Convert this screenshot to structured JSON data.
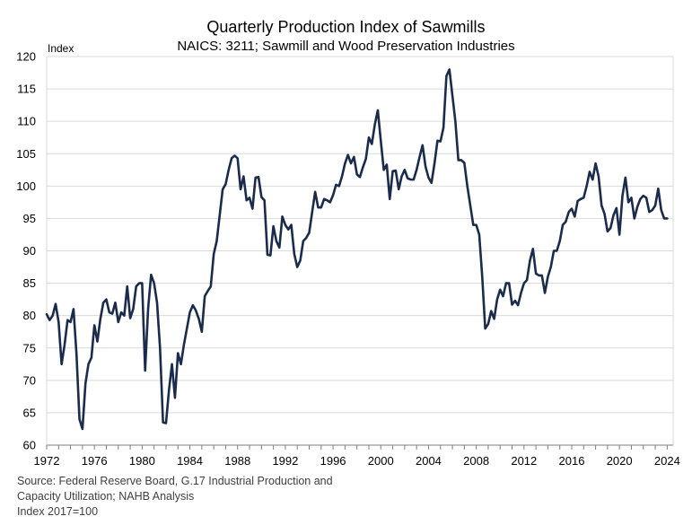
{
  "chart_data": {
    "type": "line",
    "title": "Quarterly Production Index of Sawmills",
    "subtitle": "NAICS: 3211; Sawmill and Wood Preservation Industries",
    "ylabel": "Index",
    "xlabel": "",
    "ylim": [
      60,
      120
    ],
    "xlim": [
      1972,
      2024.5
    ],
    "yticks": [
      60,
      65,
      70,
      75,
      80,
      85,
      90,
      95,
      100,
      105,
      110,
      115,
      120
    ],
    "xticks": [
      "1972",
      "1976",
      "1980",
      "1984",
      "1988",
      "1992",
      "1996",
      "2000",
      "2004",
      "2008",
      "2012",
      "2016",
      "2020",
      "2024"
    ],
    "grid": true,
    "line_color": "#1b2b4b",
    "series": [
      {
        "start": 1972.0,
        "step": 0.25,
        "values": [
          80.2,
          79.3,
          80.0,
          81.8,
          79.0,
          72.5,
          75.5,
          79.3,
          79.0,
          81.0,
          74.0,
          64.0,
          62.5,
          69.5,
          72.5,
          73.5,
          78.5,
          76.0,
          79.5,
          82.0,
          82.5,
          80.5,
          80.3,
          82.0,
          79.0,
          80.5,
          80.0,
          84.5,
          79.6,
          81.0,
          84.5,
          85.0,
          85.0,
          71.5,
          81.0,
          86.3,
          85.0,
          82.0,
          75.0,
          63.5,
          63.4,
          68.5,
          72.5,
          67.3,
          74.2,
          72.5,
          75.5,
          78.0,
          80.5,
          81.6,
          80.8,
          79.5,
          77.5,
          83.0,
          83.8,
          84.5,
          89.5,
          91.5,
          95.5,
          99.5,
          100.3,
          102.5,
          104.3,
          104.7,
          104.3,
          99.5,
          101.5,
          97.8,
          98.2,
          96.5,
          101.3,
          101.4,
          98.3,
          97.8,
          89.4,
          89.3,
          93.8,
          91.5,
          90.5,
          95.3,
          94.0,
          93.3,
          94.0,
          89.5,
          87.5,
          88.5,
          91.5,
          92.0,
          92.8,
          96.0,
          99.1,
          96.7,
          96.7,
          98.0,
          97.8,
          97.5,
          98.6,
          100.2,
          100.0,
          101.5,
          103.5,
          104.8,
          103.5,
          104.5,
          101.8,
          101.4,
          102.9,
          104.2,
          107.5,
          106.5,
          109.5,
          111.7,
          107.0,
          102.5,
          103.3,
          98.0,
          102.3,
          102.4,
          99.5,
          101.5,
          102.5,
          101.2,
          101.0,
          101.0,
          102.5,
          104.5,
          106.3,
          103.0,
          101.3,
          100.5,
          103.5,
          107.0,
          106.9,
          109.0,
          117.0,
          118.0,
          114.0,
          110.0,
          104.0,
          104.0,
          103.6,
          100.0,
          97.0,
          94.0,
          94.0,
          92.5,
          86.0,
          78.0,
          78.7,
          80.7,
          79.5,
          82.5,
          84.0,
          83.0,
          85.0,
          85.0,
          81.7,
          82.3,
          81.6,
          83.5,
          85.0,
          85.5,
          88.5,
          90.3,
          86.5,
          86.2,
          86.2,
          83.5,
          86.0,
          87.5,
          90.0,
          90.0,
          91.5,
          94.0,
          94.5,
          96.0,
          96.5,
          95.3,
          97.7,
          98.0,
          98.2,
          100.0,
          102.2,
          101.0,
          103.5,
          101.5,
          97.0,
          95.7,
          93.0,
          93.5,
          95.5,
          96.6,
          92.5,
          98.5,
          101.3,
          97.5,
          98.2,
          95.0,
          96.8,
          98.0,
          98.5,
          98.2,
          96.0,
          96.3,
          97.0,
          99.6,
          96.3,
          95.0,
          95.0
        ]
      }
    ]
  },
  "notes": [
    "Source: Federal Reserve Board, G.17 Industrial Production and",
    "Capacity Utilization; NAHB Analysis",
    "Index 2017=100"
  ]
}
